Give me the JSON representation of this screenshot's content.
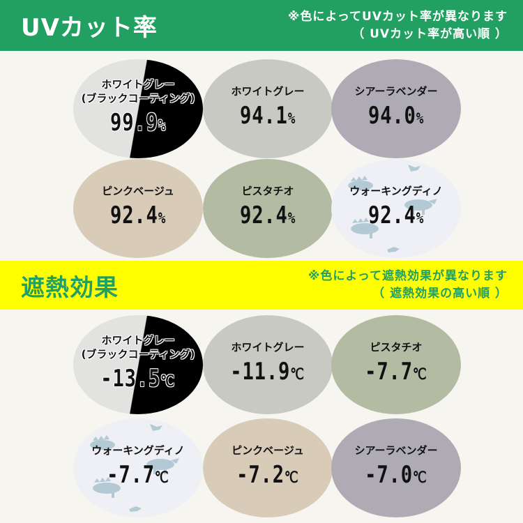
{
  "uv_section": {
    "title": "UVカット率",
    "note_line1": "※色によってUVカット率が異なります",
    "note_line2": "（ UVカット率が高い順 ）",
    "items": [
      {
        "name_line1": "ホワイトグレー",
        "name_line2": "(ブラックコーティング)",
        "value": "99.9",
        "unit": "%",
        "color": "#e2e2e0",
        "style": "split"
      },
      {
        "name_line1": "ホワイトグレー",
        "value": "94.1",
        "unit": "%",
        "color": "#c9c9c3"
      },
      {
        "name_line1": "シアーラベンダー",
        "value": "94.0",
        "unit": "%",
        "color": "#aeabb4"
      },
      {
        "name_line1": "ピンクベージュ",
        "value": "92.4",
        "unit": "%",
        "color": "#d8cbb8"
      },
      {
        "name_line1": "ピスタチオ",
        "value": "92.4",
        "unit": "%",
        "color": "#b4bba3"
      },
      {
        "name_line1": "ウォーキングディノ",
        "value": "92.4",
        "unit": "%",
        "color": "#eef0f5",
        "style": "pattern"
      }
    ]
  },
  "heat_section": {
    "title": "遮熱効果",
    "note_line1": "※色によって遮熱効果が異なります",
    "note_line2": "（ 遮熱効果の高い順 ）",
    "items": [
      {
        "name_line1": "ホワイトグレー",
        "name_line2": "(ブラックコーティング)",
        "value": "-13.5",
        "unit": "℃",
        "color": "#e2e2e0",
        "style": "split"
      },
      {
        "name_line1": "ホワイトグレー",
        "value": "-11.9",
        "unit": "℃",
        "color": "#c9c9c3"
      },
      {
        "name_line1": "ピスタチオ",
        "value": "-7.7",
        "unit": "℃",
        "color": "#b4bba3"
      },
      {
        "name_line1": "ウォーキングディノ",
        "value": "-7.7",
        "unit": "℃",
        "color": "#eef0f5",
        "style": "pattern"
      },
      {
        "name_line1": "ピンクベージュ",
        "value": "-7.2",
        "unit": "℃",
        "color": "#d8cbb8"
      },
      {
        "name_line1": "シアーラベンダー",
        "value": "-7.0",
        "unit": "℃",
        "color": "#aeabb4"
      }
    ]
  },
  "colors": {
    "green_band": "#22a062",
    "yellow_band": "#ffff00",
    "background": "#f7f5f0"
  }
}
